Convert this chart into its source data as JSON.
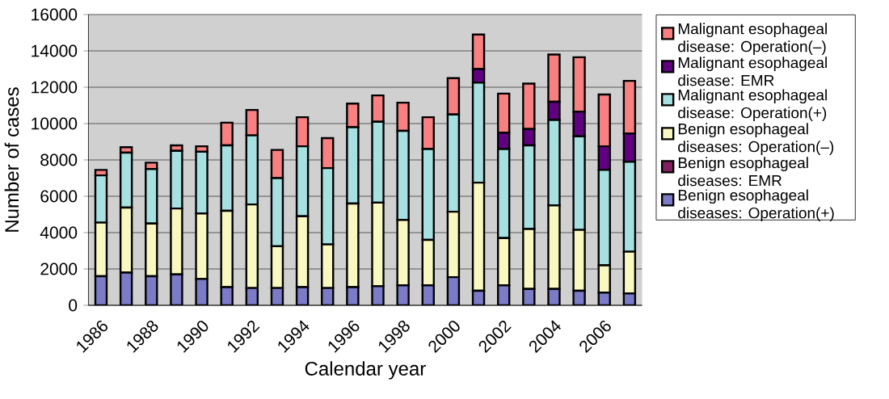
{
  "chart_data": {
    "type": "bar",
    "stacked": true,
    "xlabel": "Calendar year",
    "ylabel": "Number of cases",
    "categories": [
      "1986",
      null,
      "1988",
      null,
      "1990",
      null,
      "1992",
      null,
      "1994",
      null,
      "1996",
      null,
      "1998",
      null,
      "2000",
      null,
      "2002",
      null,
      "2004",
      null,
      "2006",
      null
    ],
    "ylim": [
      0,
      16000
    ],
    "yticks": [
      0,
      2000,
      4000,
      6000,
      8000,
      10000,
      12000,
      14000,
      16000
    ],
    "grid": "y",
    "legend": "right",
    "series": [
      {
        "name": "Benign esophageal diseases: Operation(+)",
        "color": "#7b7bc8",
        "values": [
          1600,
          1800,
          1600,
          1700,
          1450,
          1000,
          950,
          950,
          1000,
          950,
          1000,
          1050,
          1100,
          1100,
          1550,
          800,
          1100,
          900,
          900,
          800,
          700,
          650
        ]
      },
      {
        "name": "Benign esophageal diseases: EMR",
        "color": "#802060",
        "values": [
          0,
          0,
          0,
          0,
          0,
          0,
          0,
          0,
          0,
          0,
          0,
          0,
          0,
          0,
          0,
          0,
          0,
          0,
          0,
          0,
          0,
          0
        ]
      },
      {
        "name": "Benign esophageal diseases: Operation(–)",
        "color": "#f8f8c0",
        "values": [
          2950,
          3580,
          2900,
          3630,
          3600,
          4200,
          4600,
          2300,
          3900,
          2400,
          4600,
          4600,
          3600,
          2500,
          3600,
          5950,
          2600,
          3300,
          4600,
          3350,
          1500,
          2300
        ]
      },
      {
        "name": "Malignant esophageal disease: Operation(+)",
        "color": "#a6e0e0",
        "values": [
          2600,
          3020,
          3000,
          3170,
          3400,
          3600,
          3800,
          3750,
          3850,
          4200,
          4200,
          4450,
          4900,
          5000,
          5350,
          5500,
          4900,
          4600,
          4700,
          5150,
          5250,
          4950
        ]
      },
      {
        "name": "Malignant esophageal disease: EMR",
        "color": "#600080",
        "values": [
          0,
          0,
          0,
          0,
          0,
          0,
          0,
          0,
          0,
          0,
          0,
          0,
          0,
          0,
          0,
          750,
          900,
          900,
          1000,
          1350,
          1300,
          1550
        ]
      },
      {
        "name": "Malignant esophageal disease: Operation(–)",
        "color": "#f88080",
        "values": [
          300,
          300,
          350,
          300,
          300,
          1250,
          1400,
          1550,
          1600,
          1650,
          1300,
          1450,
          1550,
          1750,
          2000,
          1900,
          2150,
          2500,
          2600,
          3000,
          2850,
          2900
        ]
      }
    ]
  }
}
